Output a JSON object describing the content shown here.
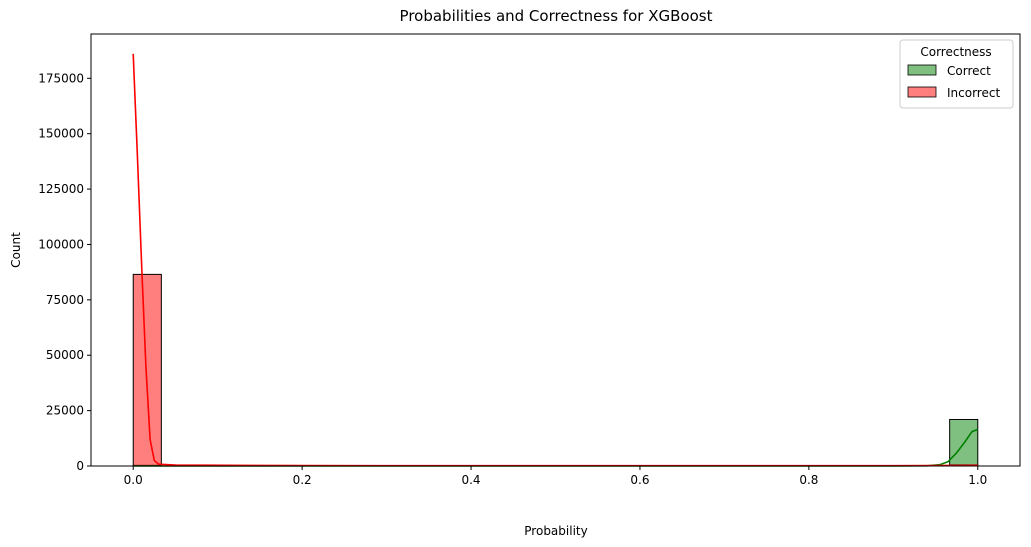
{
  "chart_data": {
    "type": "histogram",
    "title": "Probabilities and Correctness for XGBoost",
    "xlabel": "Probability",
    "ylabel": "Count",
    "xlim": [
      -0.05,
      1.05
    ],
    "ylim": [
      0,
      195000
    ],
    "x_ticks": [
      0.0,
      0.2,
      0.4,
      0.6,
      0.8,
      1.0
    ],
    "x_tick_labels": [
      "0.0",
      "0.2",
      "0.4",
      "0.6",
      "0.8",
      "1.0"
    ],
    "y_ticks": [
      0,
      25000,
      50000,
      75000,
      100000,
      125000,
      150000,
      175000
    ],
    "y_tick_labels": [
      "0",
      "25000",
      "50000",
      "75000",
      "100000",
      "125000",
      "150000",
      "175000"
    ],
    "grid": false,
    "bin_width": 0.0333,
    "legend": {
      "title": "Correctness",
      "placement": "top-right",
      "entries": [
        {
          "label": "Correct",
          "color": "#008000"
        },
        {
          "label": "Incorrect",
          "color": "#ff0000"
        }
      ]
    },
    "series": [
      {
        "name": "Correct",
        "color": "#008000",
        "fill_opacity": 0.5,
        "bins": [
          {
            "x0": 0.0,
            "x1": 0.0333,
            "count": 300
          },
          {
            "x0": 0.9667,
            "x1": 1.0,
            "count": 21000
          }
        ],
        "kde": [
          [
            0.0,
            0
          ],
          [
            0.1,
            0
          ],
          [
            0.2,
            0
          ],
          [
            0.3,
            0
          ],
          [
            0.4,
            0
          ],
          [
            0.5,
            0
          ],
          [
            0.6,
            0
          ],
          [
            0.7,
            0
          ],
          [
            0.8,
            0
          ],
          [
            0.9,
            0
          ],
          [
            0.94,
            100
          ],
          [
            0.955,
            600
          ],
          [
            0.965,
            2000
          ],
          [
            0.975,
            6000
          ],
          [
            0.985,
            11000
          ],
          [
            0.993,
            15500
          ],
          [
            1.0,
            16500
          ]
        ]
      },
      {
        "name": "Incorrect",
        "color": "#ff0000",
        "fill_opacity": 0.5,
        "bins": [
          {
            "x0": 0.0,
            "x1": 0.0333,
            "count": 86500
          },
          {
            "x0": 0.9667,
            "x1": 1.0,
            "count": 500
          }
        ],
        "kde": [
          [
            0.0,
            186000
          ],
          [
            0.005,
            140000
          ],
          [
            0.01,
            90000
          ],
          [
            0.015,
            45000
          ],
          [
            0.02,
            12000
          ],
          [
            0.025,
            2500
          ],
          [
            0.03,
            800
          ],
          [
            0.05,
            400
          ],
          [
            0.2,
            200
          ],
          [
            0.5,
            150
          ],
          [
            0.8,
            150
          ],
          [
            0.95,
            200
          ],
          [
            1.0,
            300
          ]
        ]
      }
    ]
  }
}
